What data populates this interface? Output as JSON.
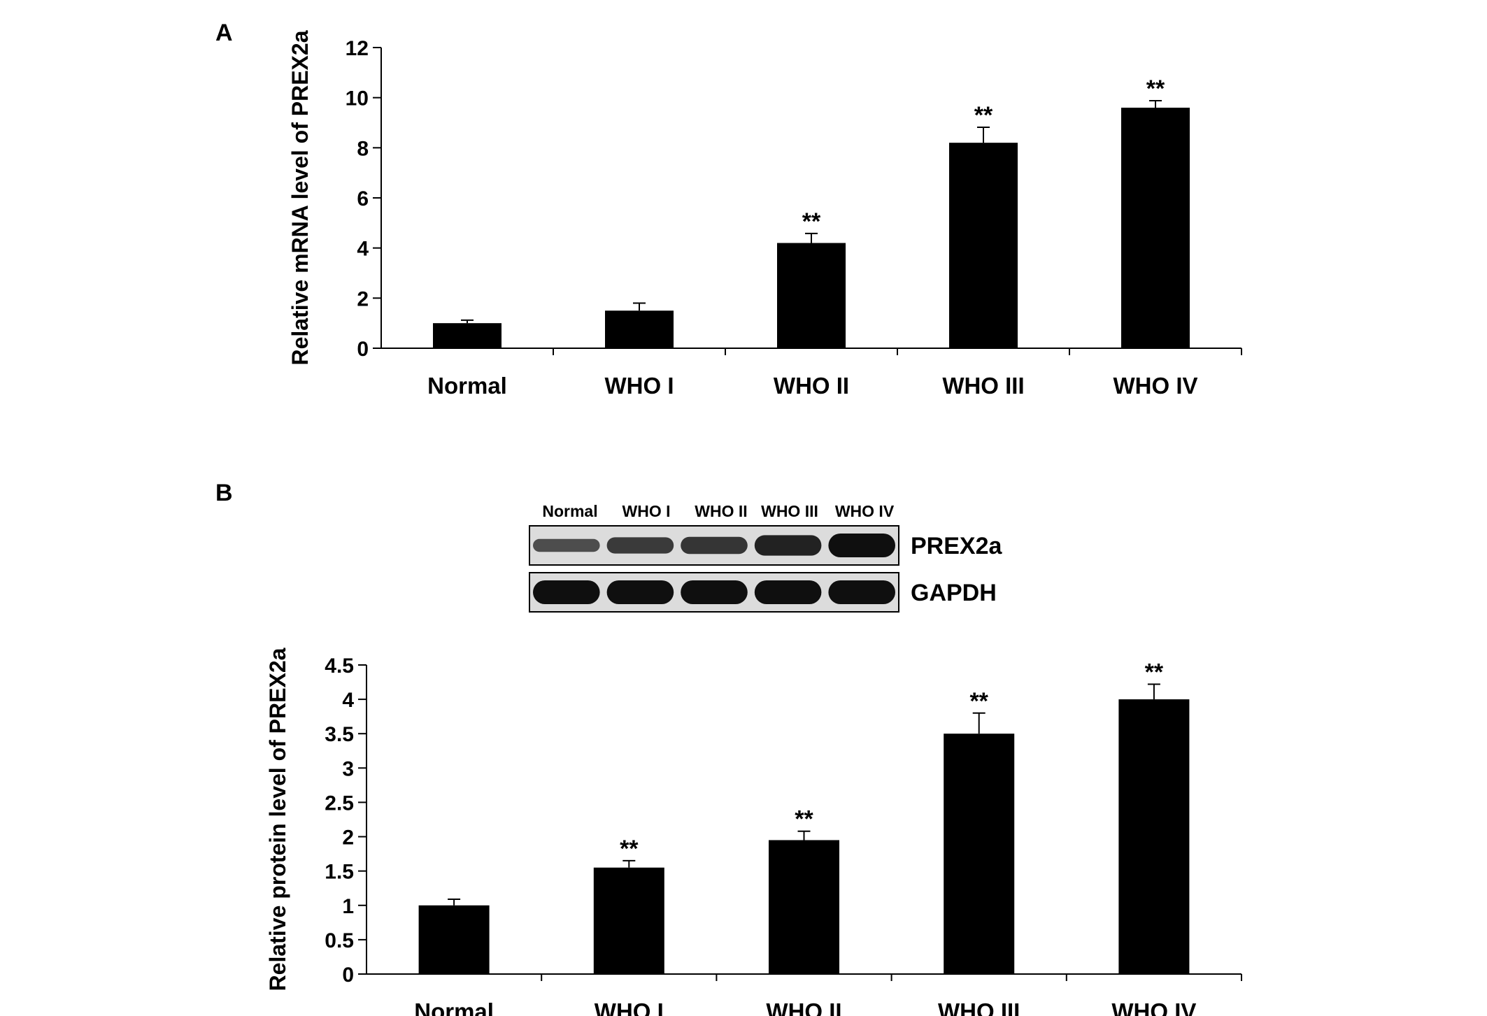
{
  "panels": {
    "a": {
      "letter": "A"
    },
    "b": {
      "letter": "B"
    }
  },
  "blot": {
    "lanes": [
      "Normal",
      "WHO I",
      "WHO II",
      "WHO III",
      "WHO IV"
    ],
    "rows": [
      {
        "label": "PREX2a",
        "intensity": [
          0.35,
          0.55,
          0.6,
          0.8,
          1.0
        ]
      },
      {
        "label": "GAPDH",
        "intensity": [
          1.0,
          1.0,
          1.0,
          1.0,
          1.0
        ]
      }
    ]
  },
  "chart_data": [
    {
      "type": "bar",
      "panel": "A",
      "title": "",
      "xlabel": "",
      "ylabel": "Relative mRNA level of PREX2a",
      "categories": [
        "Normal",
        "WHO I",
        "WHO II",
        "WHO III",
        "WHO IV"
      ],
      "values": [
        1.0,
        1.5,
        4.2,
        8.2,
        9.6
      ],
      "errors": [
        0.12,
        0.3,
        0.38,
        0.62,
        0.28
      ],
      "annotations": [
        "",
        "",
        "**",
        "**",
        "**"
      ],
      "ylim": [
        0,
        12
      ],
      "yticks": [
        "0",
        "2",
        "4",
        "6",
        "8",
        "10",
        "12"
      ],
      "grid": false,
      "bar_color": "#000000"
    },
    {
      "type": "bar",
      "panel": "B",
      "title": "",
      "xlabel": "",
      "ylabel": "Relative protein level of PREX2a",
      "categories": [
        "Normal",
        "WHO I",
        "WHO II",
        "WHO III",
        "WHO IV"
      ],
      "values": [
        1.0,
        1.55,
        1.95,
        3.5,
        4.0
      ],
      "errors": [
        0.09,
        0.1,
        0.13,
        0.3,
        0.22
      ],
      "annotations": [
        "",
        "**",
        "**",
        "**",
        "**"
      ],
      "ylim": [
        0,
        4.5
      ],
      "yticks": [
        "0",
        "0.5",
        "1",
        "1.5",
        "2",
        "2.5",
        "3",
        "3.5",
        "4",
        "4.5"
      ],
      "grid": false,
      "bar_color": "#000000"
    }
  ]
}
